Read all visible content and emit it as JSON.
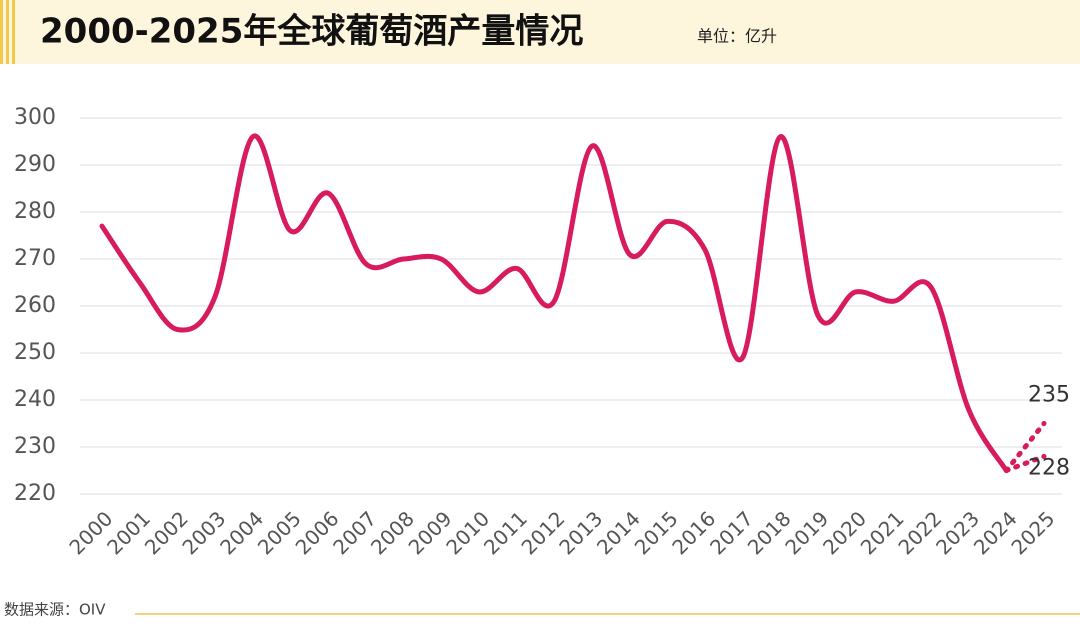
{
  "chart_data": {
    "type": "line",
    "title": "2000-2025年全球葡萄酒产量情况",
    "unit": "单位：亿升",
    "source": "数据来源：OIV",
    "categories": [
      "2000",
      "2001",
      "2002",
      "2003",
      "2004",
      "2005",
      "2006",
      "2007",
      "2008",
      "2009",
      "2010",
      "2011",
      "2012",
      "2013",
      "2014",
      "2015",
      "2016",
      "2017",
      "2018",
      "2019",
      "2020",
      "2021",
      "2022",
      "2023",
      "2024",
      "2025"
    ],
    "series": [
      {
        "color": "#d81b5e",
        "dashed": false,
        "values": [
          277,
          265,
          255,
          262,
          296,
          276,
          284,
          269,
          270,
          270,
          263,
          268,
          261,
          294,
          271,
          278,
          272,
          249,
          296,
          258,
          263,
          261,
          264,
          238,
          225,
          null
        ]
      },
      {
        "color": "#d81b5e",
        "dashed": true,
        "values": [
          null,
          null,
          null,
          null,
          null,
          null,
          null,
          null,
          null,
          null,
          null,
          null,
          null,
          null,
          null,
          null,
          null,
          null,
          null,
          null,
          null,
          null,
          null,
          null,
          225,
          235
        ]
      },
      {
        "color": "#d81b5e",
        "dashed": true,
        "values": [
          null,
          null,
          null,
          null,
          null,
          null,
          null,
          null,
          null,
          null,
          null,
          null,
          null,
          null,
          null,
          null,
          null,
          null,
          null,
          null,
          null,
          null,
          null,
          null,
          225,
          228
        ]
      }
    ],
    "labeled": [
      [
        1,
        25
      ],
      [
        2,
        25
      ]
    ],
    "ylim": [
      220,
      300
    ],
    "yticks": [
      220,
      230,
      240,
      250,
      260,
      270,
      280,
      290,
      300
    ],
    "grid": true
  }
}
